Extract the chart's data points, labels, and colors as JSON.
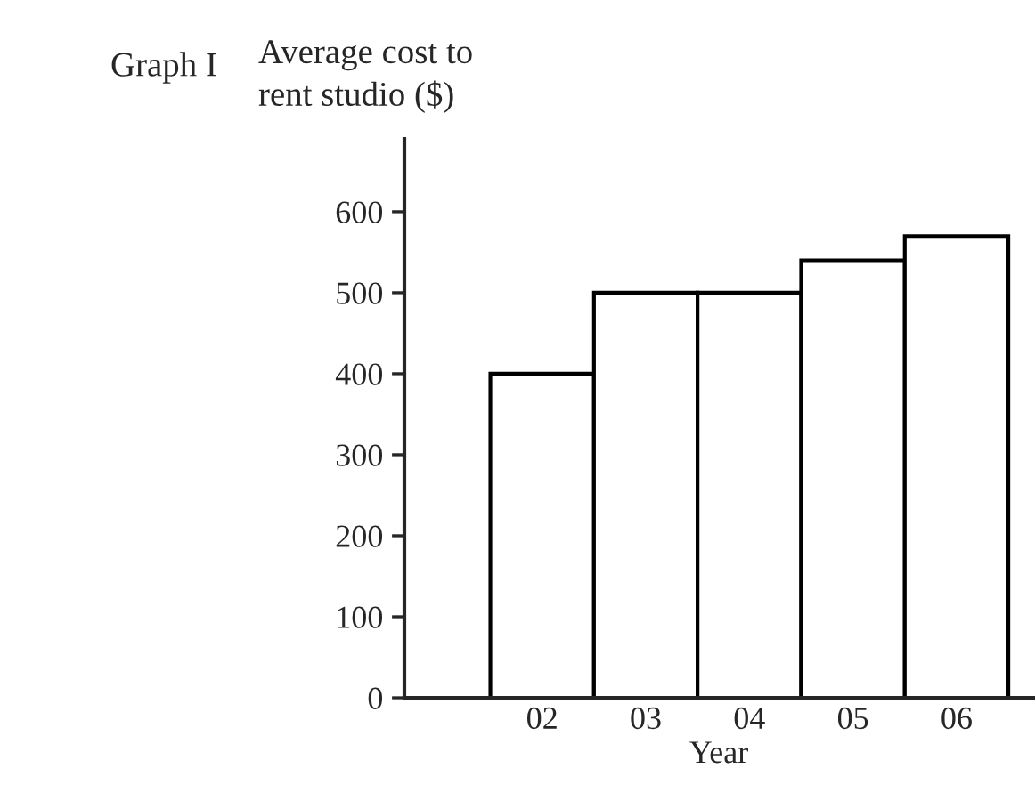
{
  "chart_data": {
    "type": "bar",
    "title": "Graph I",
    "ylabel": "Average cost to\nrent studio ($)",
    "xlabel": "Year",
    "categories": [
      "02",
      "03",
      "04",
      "05",
      "06"
    ],
    "values": [
      400,
      500,
      500,
      540,
      570
    ],
    "color": "#ffffff",
    "ylim": [
      0,
      690
    ],
    "yticks": [
      0,
      100,
      200,
      300,
      400,
      500,
      600
    ],
    "grid": false
  }
}
